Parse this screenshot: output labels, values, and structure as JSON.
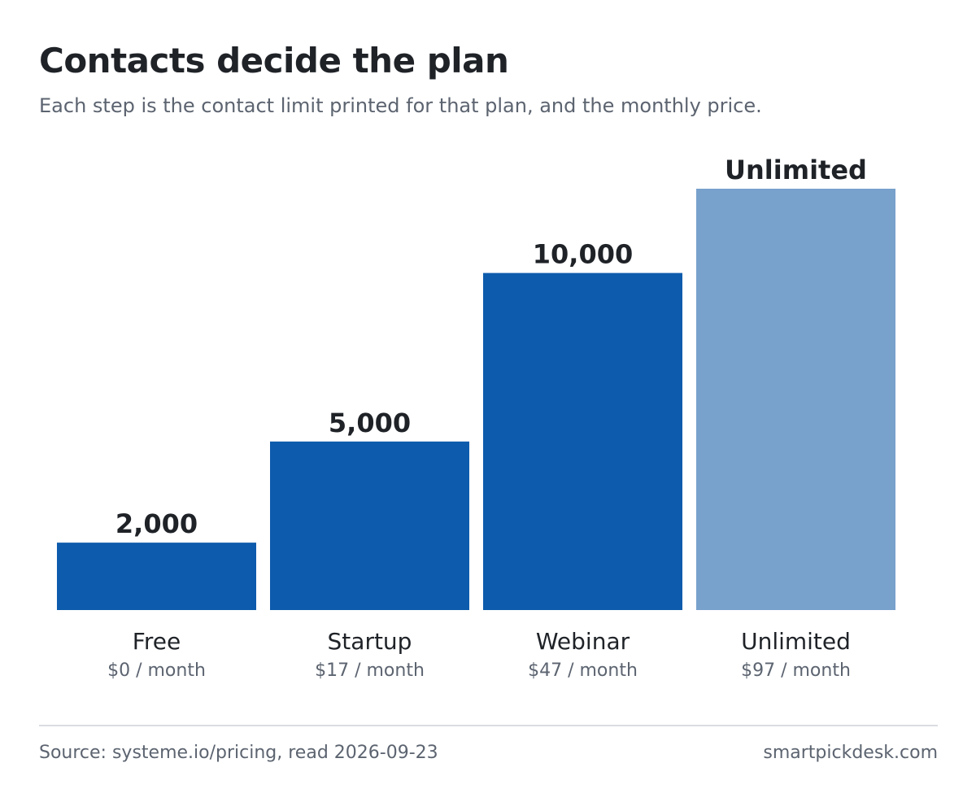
{
  "header": {
    "title": "Contacts decide the plan",
    "subtitle": "Each step is the contact limit printed for that plan, and the monthly price."
  },
  "chart_data": {
    "type": "bar",
    "categories": [
      "Free",
      "Startup",
      "Webinar",
      "Unlimited"
    ],
    "sublabels": [
      "$0 / month",
      "$17 / month",
      "$47 / month",
      "$97 / month"
    ],
    "values": [
      2000,
      5000,
      10000,
      null
    ],
    "value_labels": [
      "2,000",
      "5,000",
      "10,000",
      "Unlimited"
    ],
    "unlimited_index": 3,
    "ylim": [
      0,
      12500
    ],
    "grid": false,
    "legend": "none",
    "colors": {
      "bar": "#0d5bac",
      "bar_unlimited": "#78a1cc",
      "label": "#1f2328",
      "sublabel": "#5c6470"
    }
  },
  "footer": {
    "source": "Source: systeme.io/pricing, read 2026-09-23",
    "brand": "smartpickdesk.com"
  }
}
